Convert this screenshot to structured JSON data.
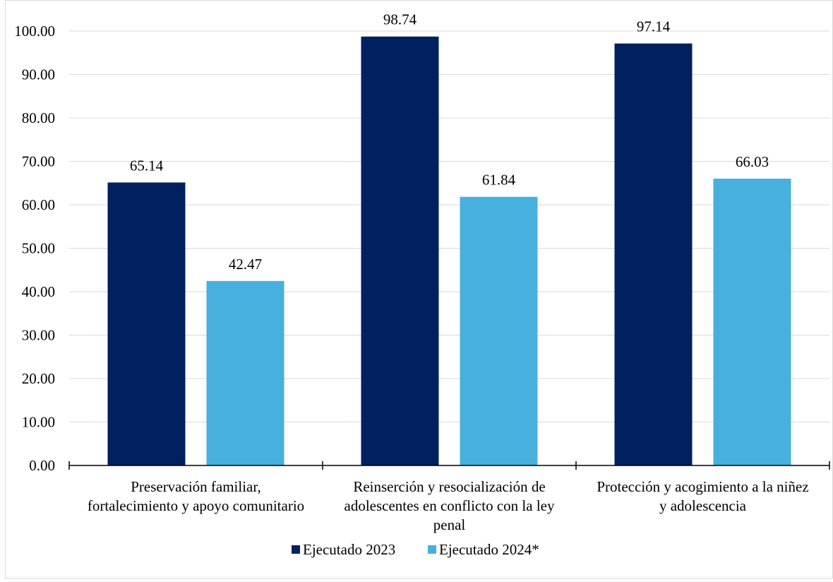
{
  "chart_data": {
    "type": "bar",
    "categories": [
      [
        "Preservación familiar,",
        "fortalecimiento y apoyo comunitario"
      ],
      [
        "Reinserción y resocialización de",
        "adolescentes en conflicto con la ley",
        "penal"
      ],
      [
        "Protección y acogimiento a la niñez",
        "y adolescencia"
      ]
    ],
    "series": [
      {
        "name": "Ejecutado 2023",
        "color": "#002060",
        "values": [
          65.14,
          98.74,
          97.14
        ],
        "labels": [
          "65.14",
          "98.74",
          "97.14"
        ]
      },
      {
        "name": "Ejecutado 2024*",
        "color": "#47b0de",
        "values": [
          42.47,
          61.84,
          66.03
        ],
        "labels": [
          "42.47",
          "61.84",
          "66.03"
        ]
      }
    ],
    "yticks": [
      "0.00",
      "10.00",
      "20.00",
      "30.00",
      "40.00",
      "50.00",
      "60.00",
      "70.00",
      "80.00",
      "90.00",
      "100.00"
    ],
    "ylim": [
      0,
      100
    ],
    "grid": true,
    "legend_position": "bottom",
    "title": "",
    "xlabel": "",
    "ylabel": ""
  }
}
